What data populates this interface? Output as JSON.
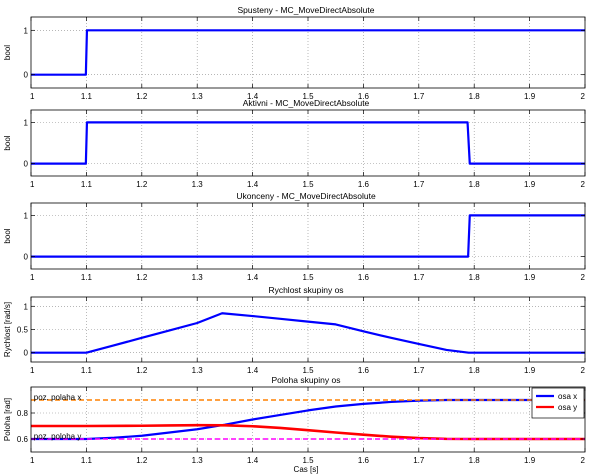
{
  "chart_data": [
    {
      "type": "line",
      "title": "Spusteny - MC_MoveDirectAbsolute",
      "xlabel": "",
      "ylabel": "bool",
      "xlim": [
        1,
        2
      ],
      "ylim": [
        -0.3,
        1.3
      ],
      "xticks": [
        1,
        1.1,
        1.2,
        1.3,
        1.4,
        1.5,
        1.6,
        1.7,
        1.8,
        1.9,
        2
      ],
      "xtick_labels": [
        "1",
        "1.1",
        "1.2",
        "1.3",
        "1.4",
        "1.5",
        "1.6",
        "1.7",
        "1.8",
        "1.9",
        "2"
      ],
      "yticks": [
        0,
        1
      ],
      "ytick_labels": [
        "0",
        "1"
      ],
      "grid": true,
      "series": [
        {
          "color": "#0000ff",
          "x": [
            1,
            1.099,
            1.101,
            2
          ],
          "y": [
            0,
            0,
            1,
            1
          ]
        }
      ]
    },
    {
      "type": "line",
      "title": "Aktivni - MC_MoveDirectAbsolute",
      "xlabel": "",
      "ylabel": "bool",
      "xlim": [
        1,
        2
      ],
      "ylim": [
        -0.3,
        1.3
      ],
      "xticks": [
        1,
        1.1,
        1.2,
        1.3,
        1.4,
        1.5,
        1.6,
        1.7,
        1.8,
        1.9,
        2
      ],
      "xtick_labels": [
        "1",
        "1.1",
        "1.2",
        "1.3",
        "1.4",
        "1.5",
        "1.6",
        "1.7",
        "1.8",
        "1.9",
        "2"
      ],
      "yticks": [
        0,
        1
      ],
      "ytick_labels": [
        "0",
        "1"
      ],
      "grid": true,
      "series": [
        {
          "color": "#0000ff",
          "x": [
            1,
            1.099,
            1.101,
            1.788,
            1.792,
            2
          ],
          "y": [
            0,
            0,
            1,
            1,
            0,
            0
          ]
        }
      ]
    },
    {
      "type": "line",
      "title": "Ukonceny - MC_MoveDirectAbsolute",
      "xlabel": "",
      "ylabel": "bool",
      "xlim": [
        1,
        2
      ],
      "ylim": [
        -0.3,
        1.3
      ],
      "xticks": [
        1,
        1.1,
        1.2,
        1.3,
        1.4,
        1.5,
        1.6,
        1.7,
        1.8,
        1.9,
        2
      ],
      "xtick_labels": [
        "1",
        "1.1",
        "1.2",
        "1.3",
        "1.4",
        "1.5",
        "1.6",
        "1.7",
        "1.8",
        "1.9",
        "2"
      ],
      "yticks": [
        0,
        1
      ],
      "ytick_labels": [
        "0",
        "1"
      ],
      "grid": true,
      "series": [
        {
          "color": "#0000ff",
          "x": [
            1,
            1.789,
            1.792,
            2
          ],
          "y": [
            0,
            0,
            1,
            1
          ]
        }
      ]
    },
    {
      "type": "line",
      "title": "Rychlost skupiny os",
      "xlabel": "",
      "ylabel": "Rychlost [rad/s]",
      "xlim": [
        1,
        2
      ],
      "ylim": [
        -0.2,
        1.2
      ],
      "xticks": [
        1,
        1.1,
        1.2,
        1.3,
        1.4,
        1.5,
        1.6,
        1.7,
        1.8,
        1.9,
        2
      ],
      "xtick_labels": [
        "1",
        "1.1",
        "1.2",
        "1.3",
        "1.4",
        "1.5",
        "1.6",
        "1.7",
        "1.8",
        "1.9",
        "2"
      ],
      "yticks": [
        0,
        0.5,
        1
      ],
      "ytick_labels": [
        "0",
        "0.5",
        "1"
      ],
      "grid": true,
      "series": [
        {
          "color": "#0000ff",
          "x": [
            1,
            1.1,
            1.15,
            1.2,
            1.25,
            1.3,
            1.345,
            1.4,
            1.45,
            1.5,
            1.55,
            1.6,
            1.65,
            1.7,
            1.75,
            1.79,
            2
          ],
          "y": [
            0,
            0,
            0.16,
            0.32,
            0.48,
            0.64,
            0.85,
            0.79,
            0.73,
            0.67,
            0.61,
            0.46,
            0.32,
            0.19,
            0.06,
            0,
            0
          ]
        }
      ]
    },
    {
      "type": "line",
      "title": "Poloha skupiny os",
      "xlabel": "Cas [s]",
      "ylabel": "Poloha [rad]",
      "xlim": [
        1,
        2
      ],
      "ylim": [
        0.5,
        1
      ],
      "xticks": [
        1,
        1.1,
        1.2,
        1.3,
        1.4,
        1.5,
        1.6,
        1.7,
        1.8,
        1.9,
        2
      ],
      "xtick_labels": [
        "1",
        "1.1",
        "1.2",
        "1.3",
        "1.4",
        "1.5",
        "1.6",
        "1.7",
        "1.8",
        "1.9",
        "2"
      ],
      "yticks": [
        0.6,
        0.8
      ],
      "ytick_labels": [
        "0.6",
        "0.8"
      ],
      "grid": true,
      "legend": "top-right",
      "series": [
        {
          "name": "osa x",
          "color": "#0000ff",
          "width": 2.2,
          "x": [
            1,
            1.1,
            1.15,
            1.2,
            1.25,
            1.3,
            1.35,
            1.4,
            1.45,
            1.5,
            1.55,
            1.6,
            1.65,
            1.7,
            1.75,
            1.8,
            2
          ],
          "y": [
            0.6,
            0.6,
            0.61,
            0.625,
            0.65,
            0.675,
            0.71,
            0.75,
            0.785,
            0.82,
            0.85,
            0.87,
            0.885,
            0.895,
            0.9,
            0.9,
            0.9
          ]
        },
        {
          "name": "osa y",
          "color": "#ff0000",
          "width": 2.6,
          "x": [
            1,
            1.1,
            1.2,
            1.25,
            1.3,
            1.35,
            1.4,
            1.45,
            1.5,
            1.55,
            1.6,
            1.65,
            1.7,
            1.75,
            1.8,
            2
          ],
          "y": [
            0.7,
            0.7,
            0.702,
            0.704,
            0.706,
            0.705,
            0.698,
            0.685,
            0.668,
            0.65,
            0.633,
            0.618,
            0.607,
            0.601,
            0.6,
            0.6
          ]
        },
        {
          "name": "",
          "color": "#ff8000",
          "dashed": true,
          "width": 1.6,
          "x": [
            1,
            2
          ],
          "y": [
            0.9,
            0.9
          ]
        },
        {
          "name": "",
          "color": "#ff00ff",
          "dashed": true,
          "width": 1.6,
          "x": [
            1,
            2
          ],
          "y": [
            0.6,
            0.6
          ]
        }
      ],
      "annotations": [
        {
          "text": "poz. polaha x",
          "x": 1.005,
          "y": 0.925
        },
        {
          "text": "poz. poloha y",
          "x": 1.005,
          "y": 0.625
        }
      ]
    }
  ]
}
